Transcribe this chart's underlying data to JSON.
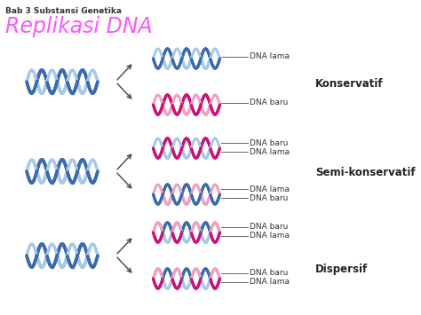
{
  "title": "Replikasi DNA",
  "subtitle": "Bab 3 Substansi Genetika",
  "title_color": "#FF55FF",
  "subtitle_color": "#333333",
  "bg_color": "#FFFFFF",
  "labels": {
    "konservatif": "Konservatif",
    "semi_konservatif": "Semi-konservatif",
    "dispersif": "Dispersif",
    "dna_lama": "DNA lama",
    "dna_baru": "DNA baru"
  },
  "colors": {
    "blue_dark": "#3A6BAF",
    "blue_light": "#A8C8E8",
    "pink_dark": "#CC1177",
    "pink_light": "#F0A0C0",
    "arrow": "#444444",
    "label_line": "#666666",
    "label_text": "#333333"
  },
  "figsize": [
    4.74,
    3.55
  ],
  "dpi": 100
}
